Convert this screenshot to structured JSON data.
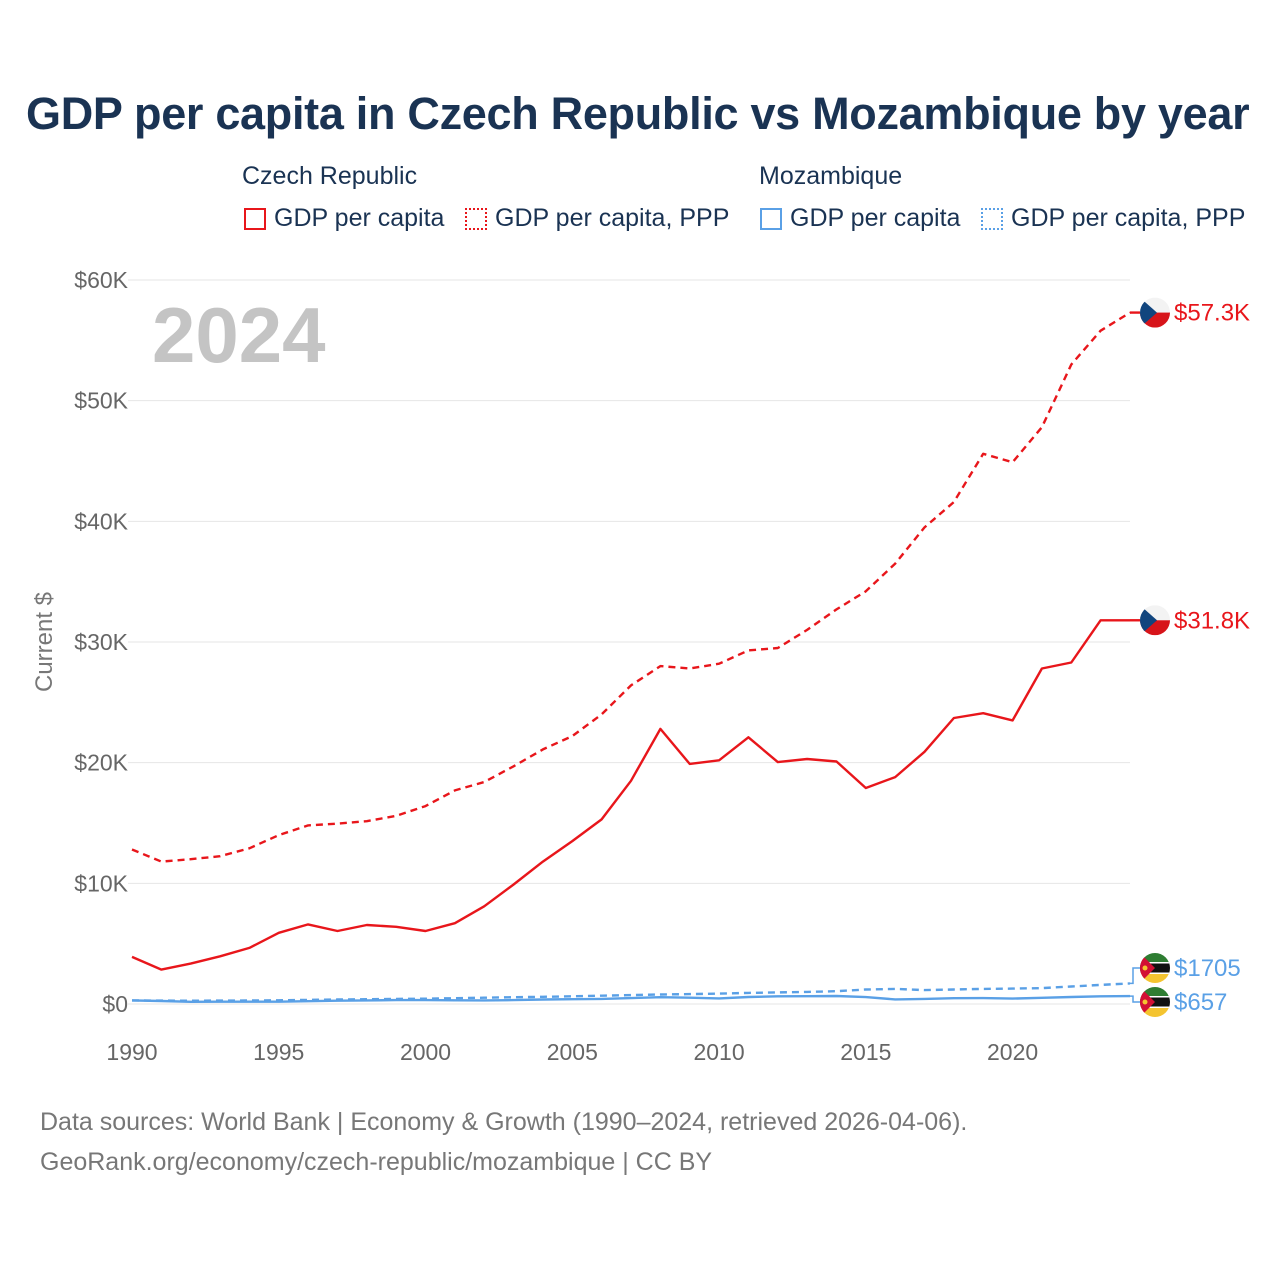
{
  "title": "GDP per capita in Czech Republic vs Mozambique by year",
  "legend": {
    "groups": [
      {
        "name": "Czech Republic",
        "items": [
          "GDP per capita",
          "GDP per capita, PPP"
        ]
      },
      {
        "name": "Mozambique",
        "items": [
          "GDP per capita",
          "GDP per capita, PPP"
        ]
      }
    ]
  },
  "footer": {
    "line1": "Data sources: World Bank | Economy & Growth (1990–2024, retrieved 2026-04-06).",
    "line2": "GeoRank.org/economy/czech-republic/mozambique | CC BY"
  },
  "colors": {
    "czech": "#e8161b",
    "mozambique": "#5aa0e6"
  },
  "chart_data": {
    "type": "line",
    "title": "GDP per capita in Czech Republic vs Mozambique by year",
    "year_label": "2024",
    "xlabel": "",
    "ylabel": "Current $",
    "xlim": [
      1990,
      2024
    ],
    "ylim": [
      0,
      60000
    ],
    "x_ticks": [
      1990,
      1995,
      2000,
      2005,
      2010,
      2015,
      2020
    ],
    "y_ticks": [
      0,
      10000,
      20000,
      30000,
      40000,
      50000,
      60000
    ],
    "y_tick_labels": [
      "$0",
      "$10K",
      "$20K",
      "$30K",
      "$40K",
      "$50K",
      "$60K"
    ],
    "x": [
      1990,
      1991,
      1992,
      1993,
      1994,
      1995,
      1996,
      1997,
      1998,
      1999,
      2000,
      2001,
      2002,
      2003,
      2004,
      2005,
      2006,
      2007,
      2008,
      2009,
      2010,
      2011,
      2012,
      2013,
      2014,
      2015,
      2016,
      2017,
      2018,
      2019,
      2020,
      2021,
      2022,
      2023,
      2024
    ],
    "series": [
      {
        "name": "Czech Republic GDP per capita",
        "country": "Czech Republic",
        "style": "solid",
        "end_label": "$31.8K",
        "values": [
          3900,
          2850,
          3350,
          3950,
          4650,
          5900,
          6600,
          6050,
          6550,
          6400,
          6050,
          6700,
          8100,
          9900,
          11800,
          13500,
          15300,
          18500,
          22800,
          19900,
          20200,
          22100,
          20050,
          20300,
          20100,
          17900,
          18800,
          20900,
          23700,
          24100,
          23500,
          27800,
          28300,
          31800,
          31800
        ]
      },
      {
        "name": "Czech Republic GDP per capita, PPP",
        "country": "Czech Republic",
        "style": "dashed",
        "end_label": "$57.3K",
        "values": [
          12800,
          11800,
          12000,
          12250,
          12900,
          14000,
          14800,
          14950,
          15150,
          15600,
          16400,
          17700,
          18400,
          19700,
          21100,
          22200,
          24000,
          26400,
          28000,
          27800,
          28200,
          29300,
          29500,
          31000,
          32700,
          34200,
          36500,
          39500,
          41600,
          45600,
          44900,
          47800,
          53000,
          55800,
          57300
        ]
      },
      {
        "name": "Mozambique GDP per capita",
        "country": "Mozambique",
        "style": "solid",
        "end_label": "$657",
        "values": [
          300,
          250,
          180,
          190,
          190,
          190,
          230,
          270,
          300,
          320,
          320,
          310,
          300,
          320,
          370,
          400,
          420,
          490,
          560,
          520,
          460,
          580,
          640,
          650,
          660,
          570,
          380,
          420,
          480,
          490,
          450,
          510,
          580,
          640,
          657
        ]
      },
      {
        "name": "Mozambique GDP per capita, PPP",
        "country": "Mozambique",
        "style": "dashed",
        "end_label": "$1705",
        "values": [
          300,
          280,
          270,
          280,
          290,
          310,
          340,
          370,
          400,
          420,
          440,
          480,
          520,
          560,
          600,
          640,
          690,
          740,
          790,
          820,
          860,
          920,
          960,
          1000,
          1060,
          1200,
          1250,
          1150,
          1200,
          1250,
          1280,
          1320,
          1450,
          1580,
          1705
        ]
      }
    ]
  }
}
